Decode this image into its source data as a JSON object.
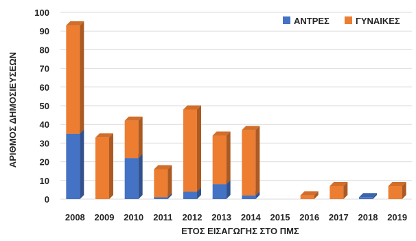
{
  "chart_data": {
    "type": "bar",
    "stacked": true,
    "style": "3d-column",
    "categories": [
      "2008",
      "2009",
      "2010",
      "2011",
      "2012",
      "2013",
      "2014",
      "2015",
      "2016",
      "2017",
      "2018",
      "2019"
    ],
    "series": [
      {
        "name": "ΑΝΤΡΕΣ",
        "color": "#4472C4",
        "values": [
          35,
          0,
          22,
          1,
          4,
          8,
          2,
          0,
          0,
          0,
          1,
          0
        ]
      },
      {
        "name": "ΓΥΝΑΙΚΕΣ",
        "color": "#ED7D31",
        "values": [
          58,
          33,
          20,
          15,
          44,
          26,
          35,
          0,
          2,
          7,
          0,
          7
        ]
      }
    ],
    "xlabel": "ΕΤΟΣ ΕΙΣΑΓΩΓΗΣ ΣΤΟ ΠΜΣ",
    "ylabel": "ΑΡΙΘΜΟΣ ΔΗΜΟΣΙΕΥΣΕΩΝ",
    "ylim": [
      0,
      100
    ],
    "yticks": [
      "0",
      "10",
      "20",
      "30",
      "40",
      "50",
      "60",
      "70",
      "80",
      "90",
      "100"
    ],
    "grid": true,
    "legend": "top-right"
  }
}
